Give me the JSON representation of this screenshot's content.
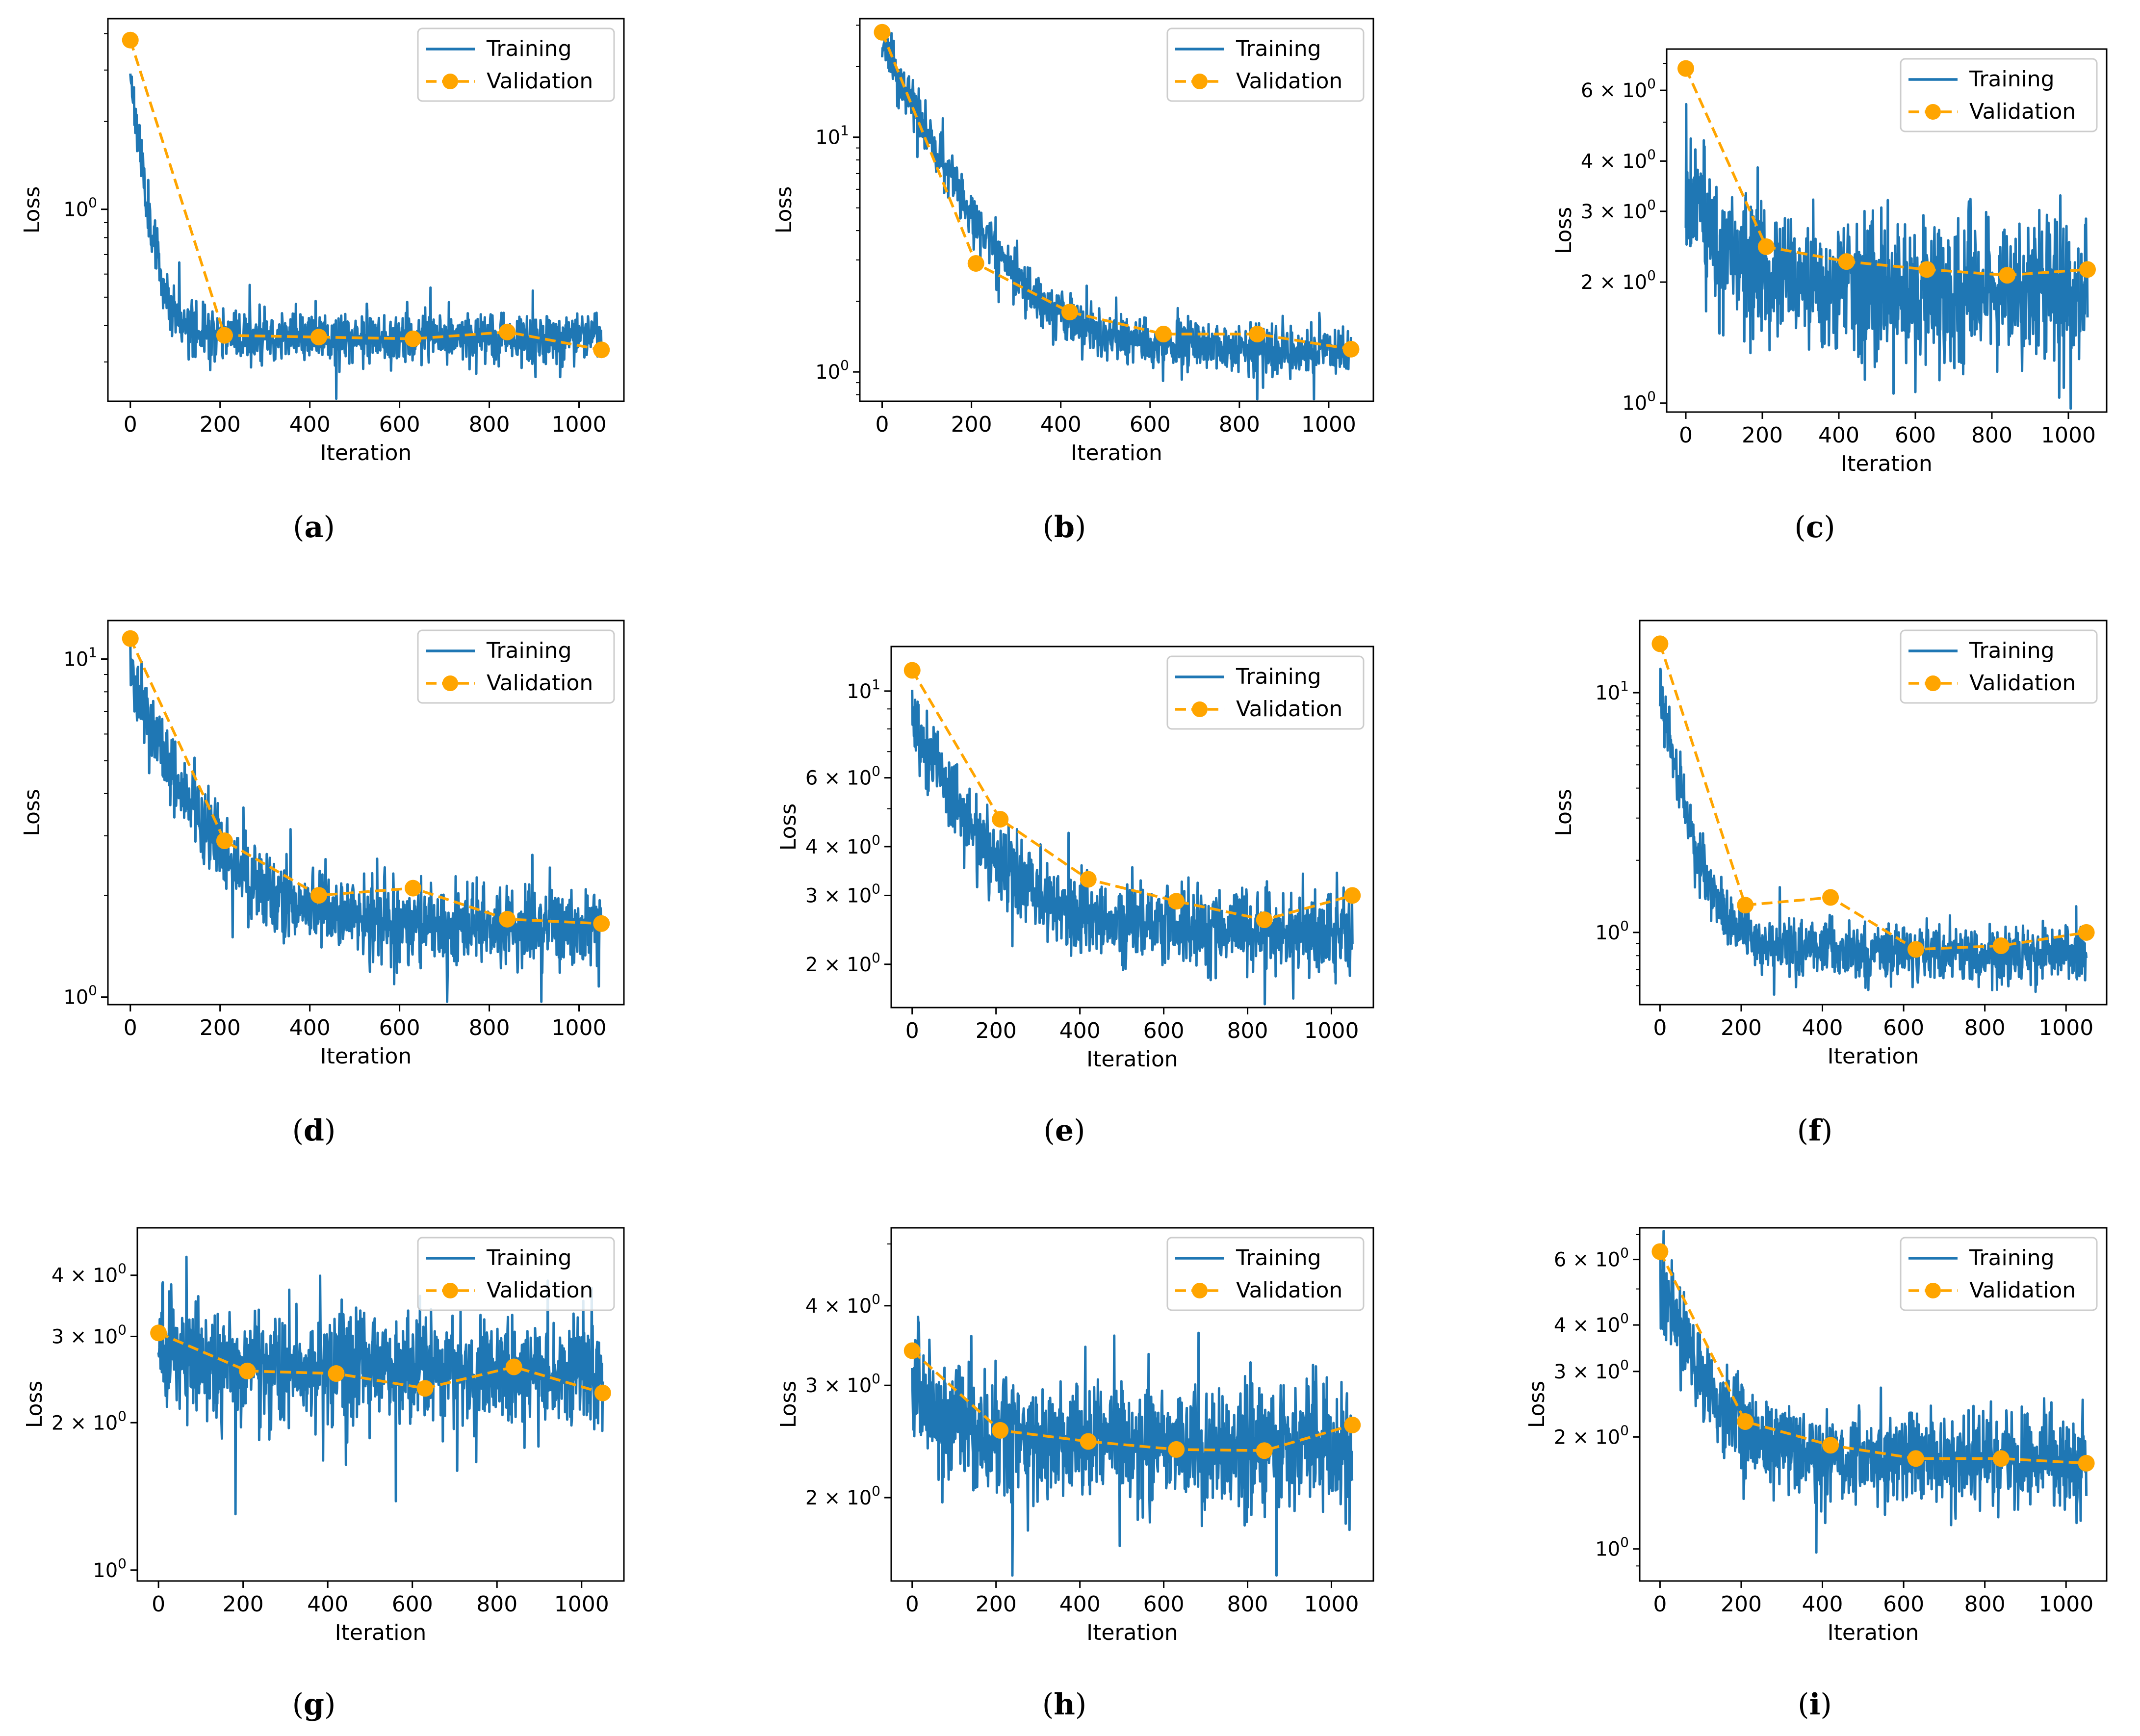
{
  "colors": {
    "training": "#1f77b4",
    "validation": "#ffa500",
    "axis": "#000000"
  },
  "chart_data": [
    {
      "type": "line",
      "caption": "a",
      "xlabel": "Iteration",
      "ylabel": "Loss",
      "yscale": "log",
      "xlim": [
        -50,
        1100
      ],
      "ylim": [
        0.22,
        4.5
      ],
      "xticks": [
        0,
        200,
        400,
        600,
        800,
        1000
      ],
      "yticks": [
        {
          "value": 1,
          "label": "10",
          "exp": "0"
        }
      ],
      "legend_position": "top-right",
      "training": {
        "name": "Training",
        "start": 3.0,
        "end": 0.36,
        "plateau_at": 0.37,
        "decay_iters": 70,
        "noise": 0.1,
        "seed": 11
      },
      "series": [
        {
          "name": "Validation",
          "x": [
            0,
            210,
            420,
            630,
            840,
            1050
          ],
          "values": [
            3.8,
            0.37,
            0.365,
            0.36,
            0.38,
            0.33
          ]
        }
      ]
    },
    {
      "type": "line",
      "caption": "b",
      "xlabel": "Iteration",
      "ylabel": "Loss",
      "yscale": "log",
      "xlim": [
        -50,
        1100
      ],
      "ylim": [
        0.75,
        32
      ],
      "xticks": [
        0,
        200,
        400,
        600,
        800,
        1000
      ],
      "yticks": [
        {
          "value": 1,
          "label": "10",
          "exp": "0"
        },
        {
          "value": 10,
          "label": "10",
          "exp": "1"
        }
      ],
      "legend_position": "top-right",
      "training": {
        "name": "Training",
        "start": 25,
        "end": 1.2,
        "plateau_at": 1.3,
        "decay_iters": 260,
        "noise": 0.12,
        "seed": 23
      },
      "series": [
        {
          "name": "Validation",
          "x": [
            0,
            210,
            420,
            630,
            840,
            1050
          ],
          "values": [
            28.0,
            2.9,
            1.8,
            1.45,
            1.45,
            1.25
          ]
        }
      ]
    },
    {
      "type": "line",
      "caption": "c",
      "xlabel": "Iteration",
      "ylabel": "Loss",
      "yscale": "log",
      "xlim": [
        -50,
        1100
      ],
      "ylim": [
        0.95,
        7.6
      ],
      "xticks": [
        0,
        200,
        400,
        600,
        800,
        1000
      ],
      "yticks": [
        {
          "value": 1,
          "label": "10",
          "exp": "0"
        },
        {
          "value": 2,
          "label": "2 × 10",
          "exp": "0"
        },
        {
          "value": 3,
          "label": "3 × 10",
          "exp": "0"
        },
        {
          "value": 4,
          "label": "4 × 10",
          "exp": "0"
        },
        {
          "value": 6,
          "label": "6 × 10",
          "exp": "0"
        }
      ],
      "legend_position": "top-right",
      "training": {
        "name": "Training",
        "start": 3.4,
        "end": 1.85,
        "plateau_at": 2.0,
        "decay_iters": 200,
        "noise": 0.2,
        "seed": 37
      },
      "series": [
        {
          "name": "Validation",
          "x": [
            0,
            210,
            420,
            630,
            840,
            1050
          ],
          "values": [
            6.8,
            2.45,
            2.25,
            2.15,
            2.08,
            2.15
          ]
        }
      ]
    },
    {
      "type": "line",
      "caption": "d",
      "xlabel": "Iteration",
      "ylabel": "Loss",
      "yscale": "log",
      "xlim": [
        -50,
        1100
      ],
      "ylim": [
        0.95,
        13
      ],
      "xticks": [
        0,
        200,
        400,
        600,
        800,
        1000
      ],
      "yticks": [
        {
          "value": 1,
          "label": "10",
          "exp": "0"
        },
        {
          "value": 10,
          "label": "10",
          "exp": "1"
        }
      ],
      "legend_position": "top-right",
      "training": {
        "name": "Training",
        "start": 9.0,
        "end": 1.6,
        "plateau_at": 1.7,
        "decay_iters": 260,
        "noise": 0.14,
        "seed": 41
      },
      "series": [
        {
          "name": "Validation",
          "x": [
            0,
            210,
            420,
            630,
            840,
            1050
          ],
          "values": [
            11.5,
            2.9,
            2.0,
            2.1,
            1.7,
            1.65
          ]
        }
      ]
    },
    {
      "type": "line",
      "caption": "e",
      "xlabel": "Iteration",
      "ylabel": "Loss",
      "yscale": "log",
      "xlim": [
        -50,
        1100
      ],
      "ylim": [
        1.55,
        13
      ],
      "xticks": [
        0,
        200,
        400,
        600,
        800,
        1000
      ],
      "yticks": [
        {
          "value": 2,
          "label": "2 × 10",
          "exp": "0"
        },
        {
          "value": 3,
          "label": "3 × 10",
          "exp": "0"
        },
        {
          "value": 4,
          "label": "4 × 10",
          "exp": "0"
        },
        {
          "value": 6,
          "label": "6 × 10",
          "exp": "0"
        },
        {
          "value": 10,
          "label": "10",
          "exp": "1"
        }
      ],
      "legend_position": "top-right",
      "training": {
        "name": "Training",
        "start": 8.5,
        "end": 2.4,
        "plateau_at": 2.5,
        "decay_iters": 320,
        "noise": 0.12,
        "seed": 53
      },
      "series": [
        {
          "name": "Validation",
          "x": [
            0,
            210,
            420,
            630,
            840,
            1050
          ],
          "values": [
            11.3,
            4.7,
            3.3,
            2.9,
            2.6,
            3.0
          ]
        }
      ]
    },
    {
      "type": "line",
      "caption": "f",
      "xlabel": "Iteration",
      "ylabel": "Loss",
      "yscale": "log",
      "xlim": [
        -50,
        1100
      ],
      "ylim": [
        0.5,
        20
      ],
      "xticks": [
        0,
        200,
        400,
        600,
        800,
        1000
      ],
      "yticks": [
        {
          "value": 1,
          "label": "10",
          "exp": "0"
        },
        {
          "value": 10,
          "label": "10",
          "exp": "1"
        }
      ],
      "legend_position": "top-right",
      "training": {
        "name": "Training",
        "start": 10.0,
        "end": 0.8,
        "plateau_at": 0.85,
        "decay_iters": 120,
        "noise": 0.13,
        "seed": 67
      },
      "series": [
        {
          "name": "Validation",
          "x": [
            0,
            210,
            420,
            630,
            840,
            1050
          ],
          "values": [
            16.0,
            1.3,
            1.4,
            0.85,
            0.88,
            1.0
          ]
        }
      ]
    },
    {
      "type": "line",
      "caption": "g",
      "xlabel": "Iteration",
      "ylabel": "Loss",
      "yscale": "log",
      "xlim": [
        -50,
        1100
      ],
      "ylim": [
        0.95,
        5.0
      ],
      "xticks": [
        0,
        200,
        400,
        600,
        800,
        1000
      ],
      "yticks": [
        {
          "value": 1,
          "label": "10",
          "exp": "0"
        },
        {
          "value": 2,
          "label": "2 × 10",
          "exp": "0"
        },
        {
          "value": 3,
          "label": "3 × 10",
          "exp": "0"
        },
        {
          "value": 4,
          "label": "4 × 10",
          "exp": "0"
        }
      ],
      "legend_position": "top-right",
      "training": {
        "name": "Training",
        "start": 2.9,
        "end": 2.5,
        "plateau_at": 2.55,
        "decay_iters": 300,
        "noise": 0.13,
        "seed": 71
      },
      "series": [
        {
          "name": "Validation",
          "x": [
            0,
            210,
            420,
            630,
            840,
            1050
          ],
          "values": [
            3.05,
            2.55,
            2.52,
            2.35,
            2.6,
            2.3
          ]
        }
      ]
    },
    {
      "type": "line",
      "caption": "h",
      "xlabel": "Iteration",
      "ylabel": "Loss",
      "yscale": "log",
      "xlim": [
        -50,
        1100
      ],
      "ylim": [
        1.48,
        5.3
      ],
      "xticks": [
        0,
        200,
        400,
        600,
        800,
        1000
      ],
      "yticks": [
        {
          "value": 2,
          "label": "2 × 10",
          "exp": "0"
        },
        {
          "value": 3,
          "label": "3 × 10",
          "exp": "0"
        },
        {
          "value": 4,
          "label": "4 × 10",
          "exp": "0"
        }
      ],
      "legend_position": "top-right",
      "training": {
        "name": "Training",
        "start": 3.0,
        "end": 2.4,
        "plateau_at": 2.45,
        "decay_iters": 200,
        "noise": 0.11,
        "seed": 83
      },
      "series": [
        {
          "name": "Validation",
          "x": [
            0,
            210,
            420,
            630,
            840,
            1050
          ],
          "values": [
            3.4,
            2.55,
            2.45,
            2.38,
            2.37,
            2.6
          ]
        }
      ]
    },
    {
      "type": "line",
      "caption": "i",
      "xlabel": "Iteration",
      "ylabel": "Loss",
      "yscale": "log",
      "xlim": [
        -50,
        1100
      ],
      "ylim": [
        0.82,
        7.3
      ],
      "xticks": [
        0,
        200,
        400,
        600,
        800,
        1000
      ],
      "yticks": [
        {
          "value": 1,
          "label": "10",
          "exp": "0"
        },
        {
          "value": 2,
          "label": "2 × 10",
          "exp": "0"
        },
        {
          "value": 3,
          "label": "3 × 10",
          "exp": "0"
        },
        {
          "value": 4,
          "label": "4 × 10",
          "exp": "0"
        },
        {
          "value": 6,
          "label": "6 × 10",
          "exp": "0"
        }
      ],
      "legend_position": "top-right",
      "training": {
        "name": "Training",
        "start": 5.2,
        "end": 1.7,
        "plateau_at": 1.8,
        "decay_iters": 230,
        "noise": 0.14,
        "seed": 97
      },
      "series": [
        {
          "name": "Validation",
          "x": [
            0,
            210,
            420,
            630,
            840,
            1050
          ],
          "values": [
            6.3,
            2.2,
            1.9,
            1.75,
            1.75,
            1.7
          ]
        }
      ]
    }
  ]
}
